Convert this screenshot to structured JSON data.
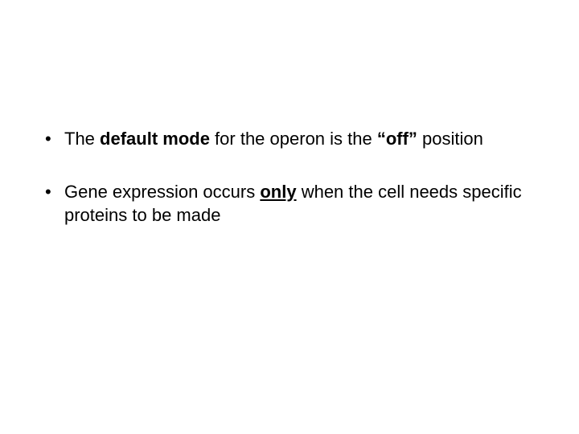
{
  "slide": {
    "background_color": "#ffffff",
    "text_color": "#000000",
    "font_family": "Comic Sans MS",
    "font_size_pt": 22,
    "bullets": [
      {
        "segments": [
          {
            "text": "The ",
            "bold": false,
            "underline": false
          },
          {
            "text": "default mode",
            "bold": true,
            "underline": false
          },
          {
            "text": " for the operon is the ",
            "bold": false,
            "underline": false
          },
          {
            "text": "“off”",
            "bold": true,
            "underline": false
          },
          {
            "text": " position",
            "bold": false,
            "underline": false
          }
        ]
      },
      {
        "segments": [
          {
            "text": "Gene expression occurs ",
            "bold": false,
            "underline": false
          },
          {
            "text": "only",
            "bold": true,
            "underline": true
          },
          {
            "text": " when the cell needs specific proteins to be made",
            "bold": false,
            "underline": false
          }
        ]
      }
    ]
  }
}
